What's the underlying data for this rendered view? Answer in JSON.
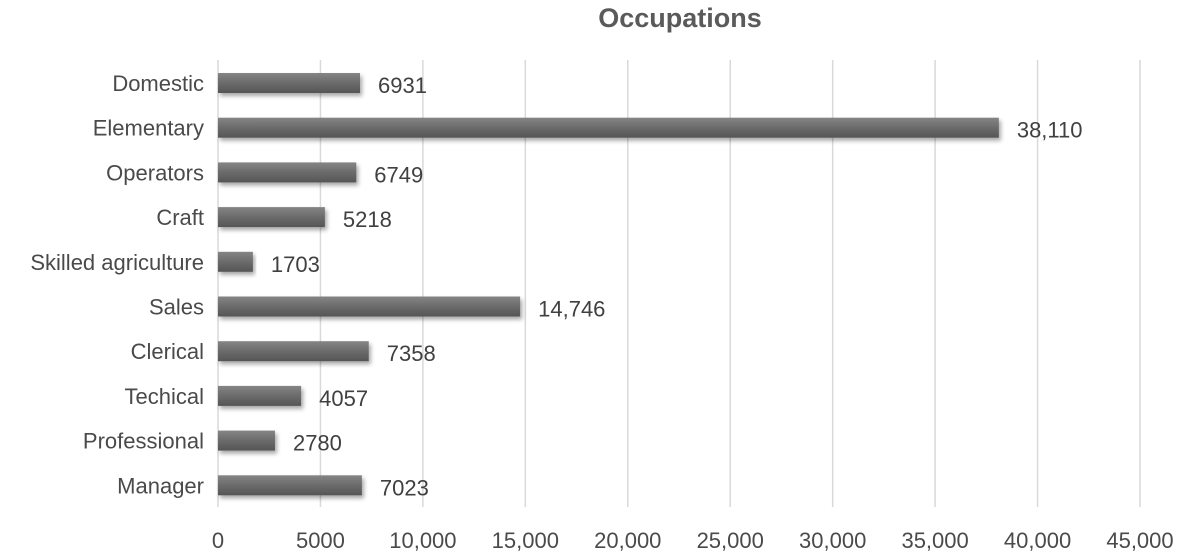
{
  "chart_data": {
    "type": "bar",
    "orientation": "horizontal",
    "title": "Occupations",
    "xlabel": "",
    "ylabel": "",
    "categories": [
      "Domestic",
      "Elementary",
      "Operators",
      "Craft",
      "Skilled agriculture",
      "Sales",
      "Clerical",
      "Techical",
      "Professional",
      "Manager"
    ],
    "values": [
      6931,
      38110,
      6749,
      5218,
      1703,
      14746,
      7358,
      4057,
      2780,
      7023
    ],
    "data_labels": [
      "6931",
      "38,110",
      "6749",
      "5218",
      "1703",
      "14,746",
      "7358",
      "4057",
      "2780",
      "7023"
    ],
    "xlim": [
      0,
      45000
    ],
    "x_ticks": [
      0,
      5000,
      10000,
      15000,
      20000,
      25000,
      30000,
      35000,
      40000,
      45000
    ],
    "x_tick_labels": [
      "0",
      "5000",
      "10,000",
      "15,000",
      "20,000",
      "25,000",
      "30,000",
      "35,000",
      "40,000",
      "45,000"
    ],
    "grid": true,
    "legend": "none",
    "bar_color": "#6b6b6b"
  }
}
